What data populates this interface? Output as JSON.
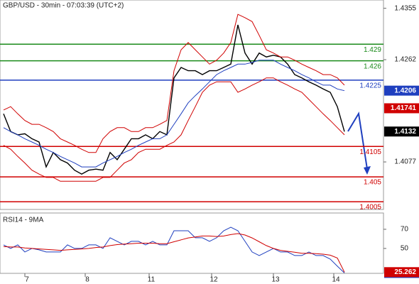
{
  "chart_data": [
    {
      "type": "line",
      "title": "GBP/USD - 30min - 07:03:39 (UTC+2)",
      "x": [
        0,
        1,
        2,
        3,
        4,
        5,
        6,
        7,
        8,
        9,
        10,
        11,
        12,
        13,
        14,
        15,
        16,
        17,
        18,
        19,
        20,
        21,
        22,
        23,
        24,
        25,
        26,
        27,
        28,
        29,
        30,
        31,
        32,
        33,
        34,
        35,
        36,
        37,
        38,
        39,
        40,
        41,
        42,
        43,
        44,
        45,
        46,
        47,
        48
      ],
      "xlim": [
        -0.5,
        53.5
      ],
      "xticks": [
        {
          "value": 3,
          "label": "7"
        },
        {
          "value": 11.5,
          "label": "8"
        },
        {
          "value": 20.5,
          "label": "11"
        },
        {
          "value": 29.3,
          "label": "12"
        },
        {
          "value": 38,
          "label": "13"
        },
        {
          "value": 46.5,
          "label": "14"
        }
      ],
      "ylim": [
        1.3991,
        1.437
      ],
      "yticks": [
        1.4355,
        1.4262,
        1.4077
      ],
      "series": [
        {
          "color": "#000000",
          "boxed": true,
          "values": [
            1.4164,
            1.4132,
            1.4126,
            1.4128,
            1.4119,
            1.4113,
            1.4068,
            1.4094,
            1.4081,
            1.4075,
            1.4062,
            1.4055,
            1.4062,
            1.4064,
            1.4062,
            1.4094,
            1.4081,
            1.41,
            1.4119,
            1.4119,
            1.4126,
            1.4119,
            1.4132,
            1.4126,
            1.4229,
            1.4248,
            1.4242,
            1.4242,
            1.4235,
            1.4242,
            1.4242,
            1.4248,
            1.4254,
            1.4325,
            1.4274,
            1.4254,
            1.4274,
            1.4267,
            1.427,
            1.4267,
            1.4254,
            1.4235,
            1.4229,
            1.4222,
            1.4216,
            1.4209,
            1.4203,
            1.4177,
            1.4132
          ]
        },
        {
          "color": "#1f3fbf",
          "boxed": true,
          "values": [
            1.4139,
            1.4132,
            1.4126,
            1.4119,
            1.4113,
            1.4107,
            1.41,
            1.4094,
            1.4087,
            1.4081,
            1.4075,
            1.4068,
            1.4068,
            1.4068,
            1.4075,
            1.4081,
            1.4087,
            1.4094,
            1.41,
            1.4107,
            1.4113,
            1.4119,
            1.4119,
            1.4126,
            1.4145,
            1.4164,
            1.4184,
            1.4197,
            1.4209,
            1.4222,
            1.4235,
            1.4242,
            1.4248,
            1.4254,
            1.4254,
            1.4257,
            1.4261,
            1.4261,
            1.4261,
            1.4254,
            1.4248,
            1.4242,
            1.4235,
            1.4229,
            1.4222,
            1.4216,
            1.4216,
            1.4209,
            1.4206
          ]
        },
        {
          "color": "#d00000",
          "boxed": false,
          "values": [
            1.4171,
            1.4177,
            1.4164,
            1.4152,
            1.4145,
            1.4145,
            1.4139,
            1.4132,
            1.4119,
            1.4113,
            1.4107,
            1.41,
            1.4094,
            1.4094,
            1.4119,
            1.4132,
            1.4139,
            1.4139,
            1.4132,
            1.4132,
            1.4139,
            1.4139,
            1.4145,
            1.4152,
            1.4242,
            1.428,
            1.4293,
            1.428,
            1.4267,
            1.4254,
            1.4261,
            1.4274,
            1.4293,
            1.4344,
            1.4338,
            1.4331,
            1.4306,
            1.428,
            1.4274,
            1.4267,
            1.4267,
            1.4261,
            1.4254,
            1.4248,
            1.4242,
            1.4235,
            1.4235,
            1.4229,
            1.4216
          ]
        },
        {
          "color": "#d00000",
          "boxed": false,
          "values": [
            1.4107,
            1.41,
            1.4087,
            1.4075,
            1.4062,
            1.4055,
            1.4049,
            1.4049,
            1.4042,
            1.4042,
            1.4042,
            1.4042,
            1.4042,
            1.4042,
            1.4049,
            1.4049,
            1.4062,
            1.4075,
            1.4081,
            1.4094,
            1.41,
            1.41,
            1.41,
            1.4107,
            1.4113,
            1.4126,
            1.4152,
            1.4177,
            1.4203,
            1.4216,
            1.4222,
            1.4222,
            1.4222,
            1.4203,
            1.4209,
            1.4216,
            1.4222,
            1.4229,
            1.4229,
            1.4222,
            1.4216,
            1.4209,
            1.4203,
            1.419,
            1.4177,
            1.4164,
            1.4152,
            1.4139,
            1.4126
          ]
        }
      ],
      "levels": [
        {
          "value": 1.429,
          "color": "#1a8a1a"
        },
        {
          "value": 1.426,
          "color": "#1a8a1a"
        },
        {
          "value": 1.4225,
          "color": "#1f3fbf"
        },
        {
          "value": 1.4105,
          "color": "#d00000"
        },
        {
          "value": 1.405,
          "color": "#d00000"
        },
        {
          "value": 1.4005,
          "color": "#d00000"
        }
      ],
      "marker": {
        "value": 1.41741,
        "color": "#d00000"
      }
    },
    {
      "type": "line",
      "title": "RSI14 - 9MA",
      "ylim": [
        24,
        87
      ],
      "yticks": [
        70,
        50
      ],
      "series": [
        {
          "color": "#1f3fbf",
          "boxed": true,
          "values": [
            53.7,
            50,
            53.7,
            46.3,
            50,
            48.5,
            46.3,
            46.3,
            46.3,
            53.7,
            50,
            50,
            53.7,
            53.7,
            50,
            61.1,
            57.4,
            53.7,
            57.4,
            57.4,
            53.7,
            57.4,
            53.7,
            53.7,
            68.5,
            68.5,
            68.5,
            61.1,
            61.1,
            57.4,
            61.1,
            68.5,
            72.2,
            68.5,
            57.4,
            46.3,
            42.6,
            46.3,
            50,
            46.3,
            46.3,
            42.6,
            42.6,
            46.3,
            42.6,
            42.6,
            38.9,
            31.5,
            24.437
          ]
        },
        {
          "color": "#d00000",
          "boxed": true,
          "values": [
            52,
            51.5,
            51.5,
            50.5,
            50,
            49.5,
            49,
            48.5,
            48,
            48.5,
            49,
            49.5,
            50,
            51,
            51.5,
            53,
            54,
            54.5,
            55,
            55.5,
            55.5,
            55.5,
            55,
            55,
            57,
            59,
            61,
            62,
            63,
            63,
            62.5,
            63,
            64.5,
            65.5,
            64,
            61,
            57,
            53,
            50,
            48,
            47,
            46,
            45,
            45,
            44.5,
            44,
            43,
            40,
            25.262
          ]
        }
      ]
    }
  ]
}
